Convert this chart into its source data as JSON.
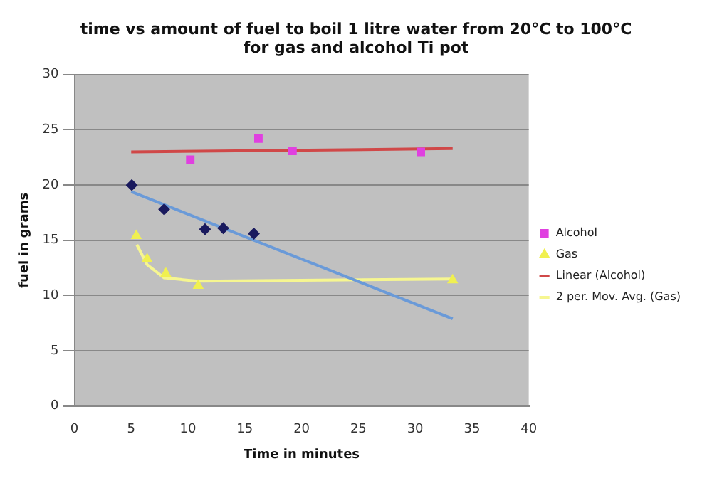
{
  "chart_data": {
    "type": "scatter",
    "title": "time vs amount of fuel to boil 1 litre water from 20°C to 100°C for gas and alcohol Ti pot",
    "xlabel": "Time in minutes",
    "ylabel": "fuel in grams",
    "xlim": [
      0,
      40
    ],
    "xticks": [
      0,
      5,
      10,
      15,
      20,
      25,
      30,
      35,
      40
    ],
    "ylim": [
      0,
      30
    ],
    "yticks": [
      0,
      5,
      10,
      15,
      20,
      25,
      30
    ],
    "grid": "y",
    "legend": "right",
    "series": [
      {
        "type": "scatter",
        "marker": "diamond",
        "color": "#1a1a5e",
        "x": [
          5.05,
          7.9,
          11.5,
          13.1,
          15.8
        ],
        "values": [
          20.0,
          17.8,
          16.0,
          16.1,
          15.6
        ]
      },
      {
        "type": "scatter",
        "name": "Alcohol",
        "marker": "square",
        "color": "#e040e0",
        "x": [
          10.2,
          16.2,
          19.2,
          30.5
        ],
        "values": [
          22.3,
          24.2,
          23.1,
          23.0
        ]
      },
      {
        "type": "scatter",
        "name": "Gas",
        "marker": "triangle",
        "color": "#f0f050",
        "x": [
          5.45,
          6.4,
          8.05,
          10.9,
          33.3
        ],
        "values": [
          15.4,
          13.3,
          12.0,
          10.9,
          11.4
        ]
      },
      {
        "type": "line",
        "name": "Linear (Alcohol)",
        "marker": "none",
        "color": "#d04848",
        "x": [
          5,
          33.3
        ],
        "values": [
          23.0,
          23.3
        ]
      },
      {
        "type": "line",
        "marker": "none",
        "color": "#6a9ad8",
        "x": [
          5,
          33.3
        ],
        "values": [
          19.4,
          7.9
        ]
      },
      {
        "type": "line",
        "name": "2 per. Mov. Avg. (Gas)",
        "marker": "none",
        "color": "#f6f690",
        "x": [
          5.5,
          6.4,
          7.9,
          10.9,
          33.3
        ],
        "values": [
          14.6,
          12.8,
          11.6,
          11.3,
          11.5
        ]
      }
    ]
  }
}
